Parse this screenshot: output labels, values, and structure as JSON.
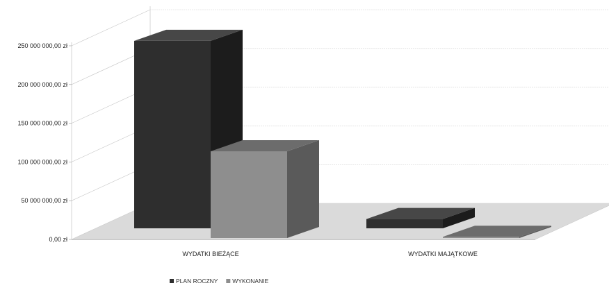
{
  "chart_data": {
    "type": "bar",
    "title": "",
    "xlabel": "",
    "ylabel": "",
    "categories": [
      "WYDATKI BIEŻĄCE",
      "WYDATKI MAJĄTKOWE"
    ],
    "series": [
      {
        "name": "PLAN ROCZNY",
        "values": [
          242000000,
          12000000
        ]
      },
      {
        "name": "WYKONANIE",
        "values": [
          112000000,
          1500000
        ]
      }
    ],
    "ylim": [
      0,
      250000000
    ],
    "yticks": [
      {
        "value": 0,
        "label": "0,00 zł"
      },
      {
        "value": 50000000,
        "label": "50 000 000,00 zł"
      },
      {
        "value": 100000000,
        "label": "100 000 000,00 zł"
      },
      {
        "value": 150000000,
        "label": "150 000 000,00 zł"
      },
      {
        "value": 200000000,
        "label": "200 000 000,00 zł"
      },
      {
        "value": 250000000,
        "label": "250 000 000,00 zł"
      }
    ],
    "grid": true,
    "legend_position": "bottom",
    "view": "3d",
    "colors": {
      "plan_front": "#2e2e2e",
      "plan_side": "#1c1c1c",
      "plan_top": "#474747",
      "exec_front": "#8e8e8e",
      "exec_side": "#5a5a5a",
      "exec_top": "#6c6c6c",
      "floor": "#dadada"
    }
  }
}
